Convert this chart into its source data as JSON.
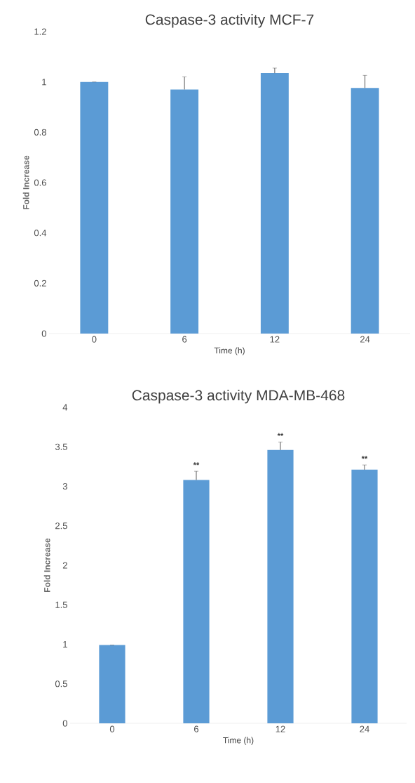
{
  "chart_data": [
    {
      "type": "bar",
      "title": "Caspase-3 activity MCF-7",
      "xlabel": "Time (h)",
      "ylabel": "Fold Increase",
      "categories": [
        "0",
        "6",
        "12",
        "24"
      ],
      "values": [
        1.0,
        0.97,
        1.035,
        0.976
      ],
      "errors": [
        0,
        0.05,
        0.02,
        0.05
      ],
      "color": "#5b9bd5",
      "ylim": [
        0,
        1.2
      ],
      "yticks": [
        0,
        0.2,
        0.4,
        0.6,
        0.8,
        1,
        1.2
      ]
    },
    {
      "type": "bar",
      "title": "Caspase-3 activity MDA-MB-468",
      "xlabel": "Time (h)",
      "ylabel": "Fold Increase",
      "categories": [
        "0",
        "6",
        "12",
        "24"
      ],
      "values": [
        0.99,
        3.08,
        3.46,
        3.21
      ],
      "errors": [
        0,
        0.11,
        0.1,
        0.06
      ],
      "color": "#5b9bd5",
      "ylim": [
        0,
        4
      ],
      "yticks": [
        0,
        0.5,
        1,
        1.5,
        2,
        2.5,
        3,
        3.5,
        4
      ],
      "annotations": [
        "**",
        "**",
        "**"
      ]
    }
  ]
}
